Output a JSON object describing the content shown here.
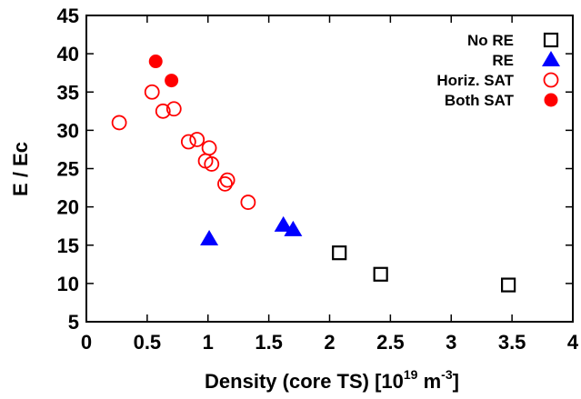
{
  "chart_data": {
    "type": "scatter",
    "title": "",
    "xlabel_main": "Density (core TS) [10",
    "xlabel_exp": "19",
    "xlabel_unit": " m",
    "xlabel_unit_exp": "-3",
    "xlabel_close": "]",
    "ylabel": "E / Ec",
    "xlim": [
      0,
      4
    ],
    "ylim": [
      5,
      45
    ],
    "xticks": [
      0,
      0.5,
      1,
      1.5,
      2,
      2.5,
      3,
      3.5,
      4
    ],
    "xtick_labels": [
      "0",
      "0.5",
      "1",
      "1.5",
      "2",
      "2.5",
      "3",
      "3.5",
      "4"
    ],
    "yticks": [
      5,
      10,
      15,
      20,
      25,
      30,
      35,
      40,
      45
    ],
    "ytick_labels": [
      "5",
      "10",
      "15",
      "20",
      "25",
      "30",
      "35",
      "40",
      "45"
    ],
    "grid": false,
    "legend_position": "top-right",
    "series": [
      {
        "name": "No RE",
        "marker": "open-square",
        "color": "#000000",
        "points": [
          [
            2.08,
            14.0
          ],
          [
            2.42,
            11.2
          ],
          [
            3.47,
            9.8
          ]
        ]
      },
      {
        "name": "RE",
        "marker": "filled-triangle",
        "color": "#0000ff",
        "points": [
          [
            1.01,
            15.8
          ],
          [
            1.62,
            17.6
          ],
          [
            1.7,
            17.0
          ]
        ]
      },
      {
        "name": "Horiz. SAT",
        "marker": "open-circle",
        "color": "#ff0000",
        "points": [
          [
            0.27,
            31.0
          ],
          [
            0.54,
            35.0
          ],
          [
            0.63,
            32.5
          ],
          [
            0.72,
            32.8
          ],
          [
            0.84,
            28.5
          ],
          [
            0.91,
            28.8
          ],
          [
            0.98,
            26.0
          ],
          [
            1.01,
            27.7
          ],
          [
            1.03,
            25.6
          ],
          [
            1.14,
            23.0
          ],
          [
            1.16,
            23.5
          ],
          [
            1.33,
            20.6
          ]
        ]
      },
      {
        "name": "Both SAT",
        "marker": "filled-circle",
        "color": "#ff0000",
        "points": [
          [
            0.57,
            39.0
          ],
          [
            0.7,
            36.5
          ]
        ]
      }
    ]
  }
}
